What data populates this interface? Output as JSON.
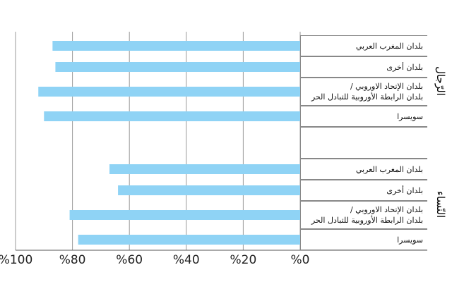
{
  "chart_data": {
    "type": "bar",
    "groups": [
      {
        "name": "الرّجال",
        "categories": [
          "بلدان المغرب العربي",
          "بلدان أخرى",
          "بلدان الإتحاد الاوروبي /\nبلدان الرابطة الأوروبية للتبادل الحر",
          "سويسرا"
        ],
        "values": [
          87,
          86,
          92,
          90
        ]
      },
      {
        "name": "النّساء",
        "categories": [
          "بلدان المغرب العربي",
          "بلدان أخرى",
          "بلدان الإتحاد الاوروبي /\nبلدان الرابطة الأوروبية للتبادل الحر",
          "سويسرا"
        ],
        "values": [
          67,
          64,
          81,
          78
        ]
      }
    ],
    "color": "#8fd3f5",
    "xlim": [
      0,
      100
    ],
    "xticks": [
      {
        "value": 0,
        "label": "%0"
      },
      {
        "value": 20,
        "label": "%20"
      },
      {
        "value": 40,
        "label": "%40"
      },
      {
        "value": 60,
        "label": "%60"
      },
      {
        "value": 80,
        "label": "%80"
      },
      {
        "value": 100,
        "label": "%100"
      }
    ],
    "grid": true
  }
}
